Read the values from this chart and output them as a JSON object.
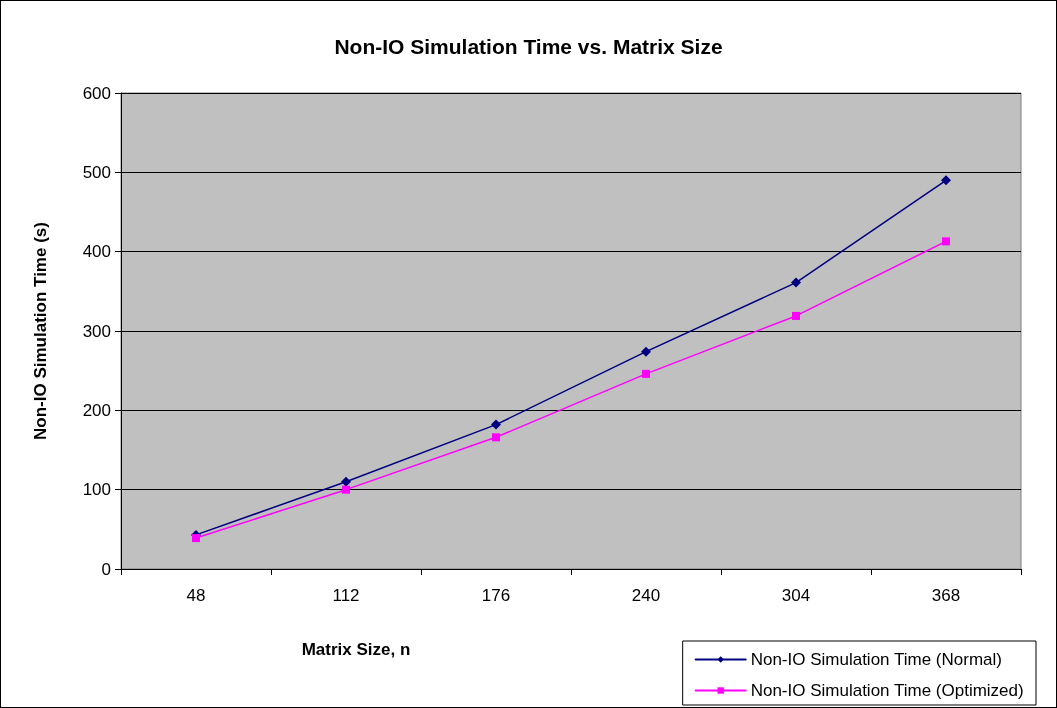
{
  "chart_data": {
    "type": "line",
    "title": "Non-IO Simulation Time vs. Matrix Size",
    "xlabel": "Matrix Size, n",
    "ylabel": "Non-IO Simulation Time (s)",
    "categories": [
      "48",
      "112",
      "176",
      "240",
      "304",
      "368"
    ],
    "series": [
      {
        "name": "Non-IO Simulation Time (Normal)",
        "color": "#000080",
        "marker": "diamond",
        "values": [
          43,
          110,
          182,
          274,
          361,
          490
        ]
      },
      {
        "name": "Non-IO Simulation Time (Optimized)",
        "color": "#ff00ff",
        "marker": "square",
        "values": [
          39,
          100,
          166,
          246,
          319,
          413
        ]
      }
    ],
    "ylim": [
      0,
      600
    ],
    "yticks": [
      0,
      100,
      200,
      300,
      400,
      500,
      600
    ],
    "grid": "y",
    "legend": "bottom right",
    "line_style": "solid"
  }
}
